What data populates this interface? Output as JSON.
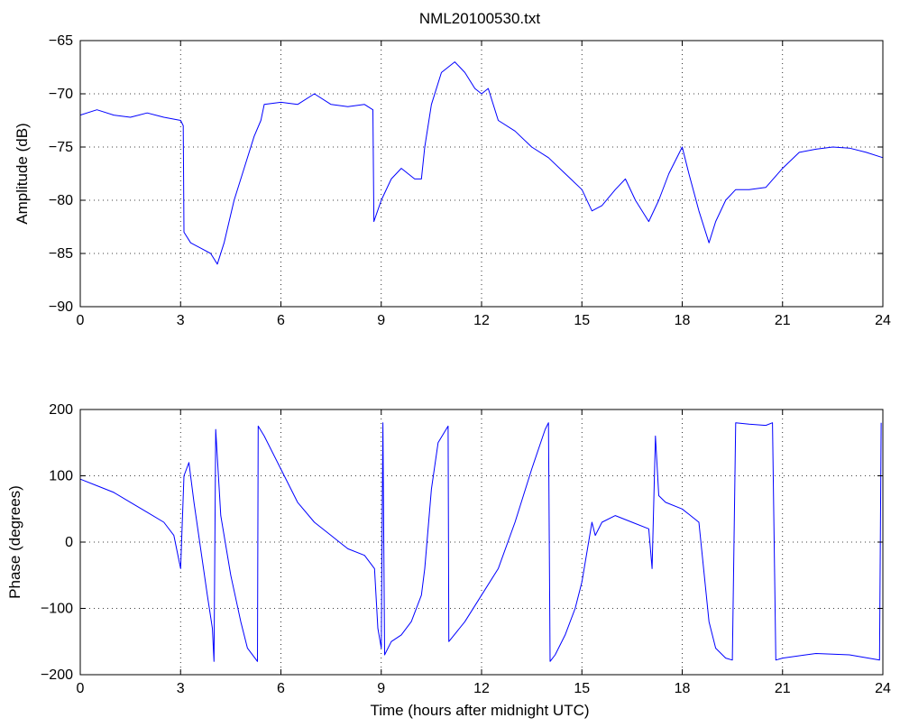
{
  "window": {
    "title": "NML20100530.txt"
  },
  "chart_data": [
    {
      "type": "line",
      "title": "NML20100530.txt",
      "xlabel": "",
      "ylabel": "Amplitude (dB)",
      "xlim": [
        0,
        24
      ],
      "ylim": [
        -90,
        -65
      ],
      "xticks": [
        0,
        3,
        6,
        9,
        12,
        15,
        18,
        21,
        24
      ],
      "yticks": [
        -90,
        -85,
        -80,
        -75,
        -70,
        -65
      ],
      "grid": true,
      "color": "#0000ff",
      "series": [
        {
          "x": [
            0,
            0.5,
            1,
            1.5,
            2,
            2.5,
            3.0,
            3.08,
            3.1,
            3.3,
            3.6,
            3.9,
            4.1,
            4.3,
            4.6,
            4.9,
            5.2,
            5.4,
            5.5,
            6,
            6.5,
            7,
            7.5,
            8,
            8.5,
            8.75,
            8.78,
            9,
            9.3,
            9.6,
            10,
            10.2,
            10.3,
            10.5,
            10.8,
            11,
            11.2,
            11.5,
            11.8,
            12,
            12.2,
            12.5,
            13,
            13.5,
            14,
            14.5,
            15,
            15.3,
            15.6,
            16,
            16.3,
            16.6,
            17,
            17.3,
            17.6,
            18,
            18.2,
            18.5,
            18.8,
            19,
            19.3,
            19.6,
            20,
            20.5,
            21,
            21.5,
            22,
            22.5,
            23,
            23.5,
            24
          ],
          "y": [
            -72,
            -71.5,
            -72,
            -72.2,
            -71.8,
            -72.2,
            -72.5,
            -73,
            -83,
            -84,
            -84.5,
            -85,
            -86,
            -84,
            -80,
            -77,
            -74,
            -72.5,
            -71,
            -70.8,
            -71,
            -70,
            -71,
            -71.2,
            -71,
            -71.5,
            -82,
            -80,
            -78,
            -77,
            -78,
            -78,
            -75,
            -71,
            -68,
            -67.5,
            -67,
            -68,
            -69.5,
            -70,
            -69.5,
            -72.5,
            -73.5,
            -75,
            -76,
            -77.5,
            -79,
            -81,
            -80.5,
            -79,
            -78,
            -80,
            -82,
            -80,
            -77.5,
            -75,
            -77.5,
            -81,
            -84,
            -82,
            -80,
            -79,
            -79,
            -78.8,
            -77,
            -75.5,
            -75.2,
            -75,
            -75.1,
            -75.5,
            -76
          ]
        }
      ]
    },
    {
      "type": "line",
      "title": "",
      "xlabel": "Time (hours after midnight UTC)",
      "ylabel": "Phase (degrees)",
      "xlim": [
        0,
        24
      ],
      "ylim": [
        -200,
        200
      ],
      "xticks": [
        0,
        3,
        6,
        9,
        12,
        15,
        18,
        21,
        24
      ],
      "yticks": [
        -200,
        -100,
        0,
        100,
        200
      ],
      "grid": true,
      "color": "#0000ff",
      "series": [
        {
          "x": [
            0,
            0.5,
            1,
            1.5,
            2,
            2.5,
            2.8,
            3.0,
            3.1,
            3.25,
            3.4,
            3.6,
            3.8,
            3.95,
            4.0,
            4.05,
            4.2,
            4.5,
            4.8,
            5.0,
            5.3,
            5.32,
            5.5,
            6.0,
            6.5,
            7.0,
            7.5,
            8.0,
            8.5,
            8.8,
            8.9,
            9.0,
            9.05,
            9.1,
            9.3,
            9.6,
            9.9,
            10.2,
            10.3,
            10.5,
            10.7,
            11.0,
            11.02,
            11.5,
            12.0,
            12.5,
            13.0,
            13.5,
            13.9,
            14.0,
            14.05,
            14.2,
            14.5,
            14.8,
            15.0,
            15.3,
            15.4,
            15.6,
            16.0,
            16.5,
            17.0,
            17.1,
            17.2,
            17.3,
            17.5,
            18.0,
            18.5,
            18.8,
            19.0,
            19.3,
            19.5,
            19.6,
            20.0,
            20.5,
            20.7,
            20.8,
            21.0,
            22.0,
            23.0,
            23.9,
            23.95
          ],
          "y": [
            95,
            85,
            75,
            60,
            45,
            30,
            10,
            -40,
            100,
            120,
            60,
            -10,
            -80,
            -130,
            -180,
            170,
            40,
            -50,
            -120,
            -160,
            -180,
            175,
            160,
            110,
            60,
            30,
            10,
            -10,
            -20,
            -40,
            -130,
            -160,
            180,
            -170,
            -150,
            -140,
            -120,
            -80,
            -40,
            80,
            150,
            175,
            -150,
            -120,
            -80,
            -40,
            30,
            110,
            170,
            180,
            -180,
            -170,
            -140,
            -100,
            -60,
            30,
            10,
            30,
            40,
            30,
            20,
            -40,
            160,
            70,
            60,
            50,
            30,
            -120,
            -160,
            -175,
            -178,
            180,
            178,
            176,
            180,
            -178,
            -175,
            -168,
            -170,
            -178,
            180
          ]
        }
      ]
    }
  ]
}
